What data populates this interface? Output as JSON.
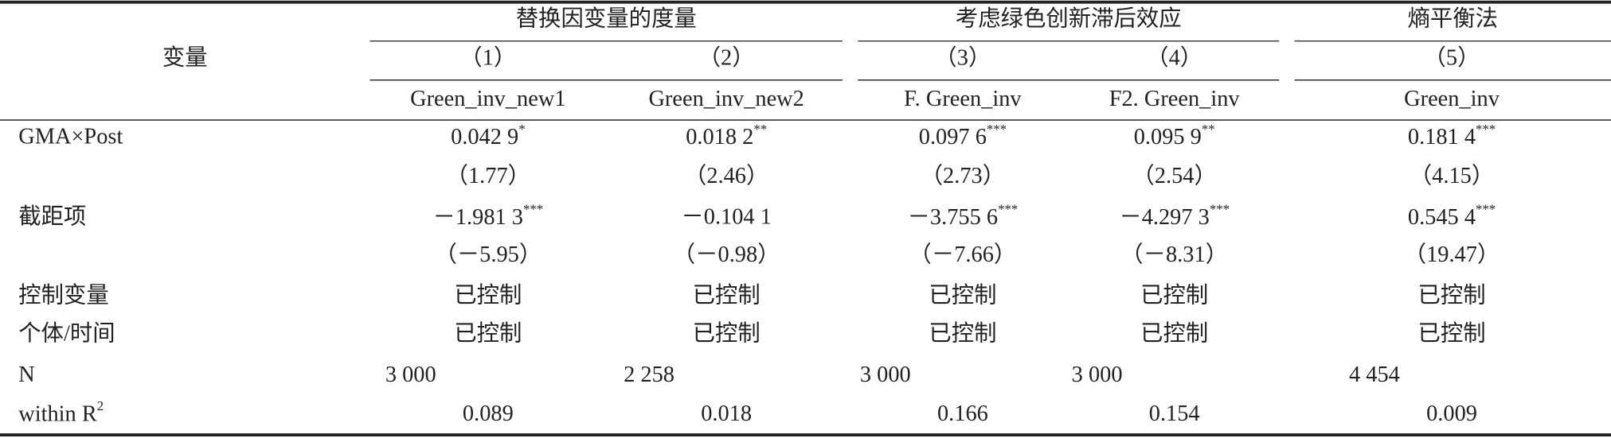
{
  "header": {
    "row_label": "变量",
    "groups": [
      "替换因变量的度量",
      "考虑绿色创新滞后效应",
      "熵平衡法"
    ],
    "columns": [
      "（1）",
      "（2）",
      "（3）",
      "（4）",
      "（5）"
    ],
    "dep_vars": [
      "Green_inv_new1",
      "Green_inv_new2",
      "F. Green_inv",
      "F2. Green_inv",
      "Green_inv"
    ]
  },
  "table": {
    "rows": [
      {
        "label": "GMA×Post",
        "cells": [
          {
            "value": "0.042 9",
            "stars": "*"
          },
          {
            "value": "0.018 2",
            "stars": "**"
          },
          {
            "value": "0.097 6",
            "stars": "***"
          },
          {
            "value": "0.095 9",
            "stars": "**"
          },
          {
            "value": "0.181 4",
            "stars": "***"
          }
        ]
      },
      {
        "cells": [
          "（1.77）",
          "（2.46）",
          "（2.73）",
          "（2.54）",
          "（4.15）"
        ]
      },
      {
        "label": "截距项",
        "cells": [
          {
            "value": "－1.981 3",
            "stars": "***"
          },
          "－0.104 1",
          {
            "value": "－3.755 6",
            "stars": "***"
          },
          {
            "value": "－4.297 3",
            "stars": "***"
          },
          {
            "value": "0.545 4",
            "stars": "***"
          }
        ]
      },
      {
        "cells": [
          "（－5.95）",
          "（－0.98）",
          "（－7.66）",
          "（－8.31）",
          "（19.47）"
        ]
      },
      {
        "label": "控制变量",
        "cells": [
          "已控制",
          "已控制",
          "已控制",
          "已控制",
          "已控制"
        ]
      },
      {
        "label": "个体/时间",
        "cells": [
          "已控制",
          "已控制",
          "已控制",
          "已控制",
          "已控制"
        ]
      },
      {
        "label": "N",
        "cells": [
          "3 000",
          "2 258",
          "3 000",
          "3 000",
          "4 454"
        ]
      },
      {
        "label": {
          "text": "within R",
          "sup": "2"
        },
        "cells": [
          "0.089",
          "0.018",
          "0.166",
          "0.154",
          "0.009"
        ]
      }
    ]
  }
}
